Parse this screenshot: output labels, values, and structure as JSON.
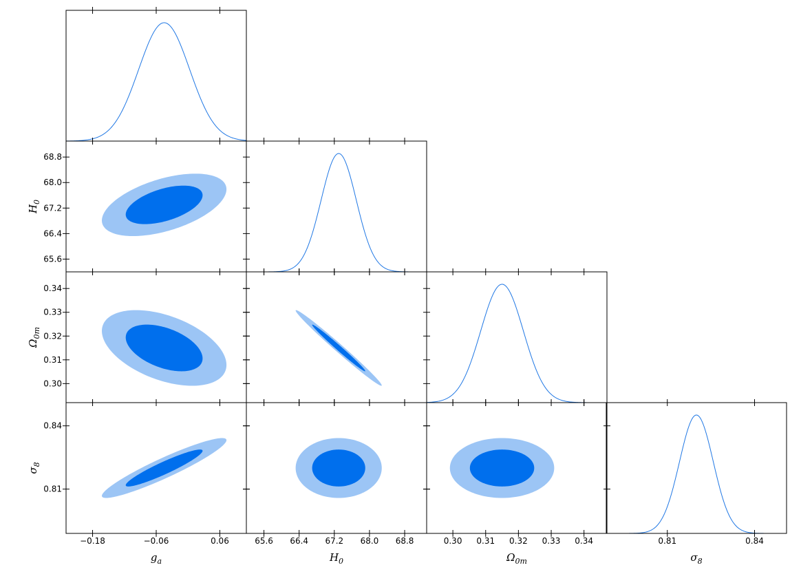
{
  "chart_data": {
    "type": "corner",
    "parameters": [
      {
        "key": "ga",
        "symbol": "g",
        "sub": "a",
        "range": [
          -0.23,
          0.11
        ],
        "ticks": [
          -0.18,
          -0.06,
          0.06
        ],
        "tick_labels": [
          "−0.18",
          "−0.06",
          "0.06"
        ]
      },
      {
        "key": "H0",
        "symbol": "H",
        "sub": "0",
        "range": [
          65.2,
          69.3
        ],
        "ticks": [
          65.6,
          66.4,
          67.2,
          68.0,
          68.8
        ],
        "tick_labels": [
          "65.6",
          "66.4",
          "67.2",
          "68.0",
          "68.8"
        ]
      },
      {
        "key": "Om",
        "symbol": "Ω",
        "sub": "0m",
        "range": [
          0.292,
          0.347
        ],
        "ticks": [
          0.3,
          0.31,
          0.32,
          0.33,
          0.34
        ],
        "tick_labels": [
          "0.30",
          "0.31",
          "0.32",
          "0.33",
          "0.34"
        ]
      },
      {
        "key": "s8",
        "symbol": "σ",
        "sub": "8",
        "range": [
          0.789,
          0.851
        ],
        "ticks": [
          0.81,
          0.84
        ],
        "tick_labels": [
          "0.81",
          "0.84"
        ]
      }
    ],
    "marginals": [
      {
        "param": "ga",
        "mean": -0.045,
        "sigma": 0.048
      },
      {
        "param": "H0",
        "mean": 67.3,
        "sigma": 0.4
      },
      {
        "param": "Om",
        "mean": 0.315,
        "sigma": 0.0065
      },
      {
        "param": "s8",
        "mean": 0.82,
        "sigma": 0.0058
      }
    ],
    "correlations": {
      "H0|ga": 0.5,
      "Om|ga": -0.45,
      "Om|H0": -0.99,
      "s8|ga": 0.93,
      "s8|H0": 0.0,
      "s8|Om": 0.0
    },
    "contour_levels": [
      "68%",
      "95%"
    ],
    "colors": {
      "line": "#1f77e4",
      "inner": "#006fed",
      "outer": "#9cc5f5"
    },
    "grid": false,
    "legend": "none"
  }
}
